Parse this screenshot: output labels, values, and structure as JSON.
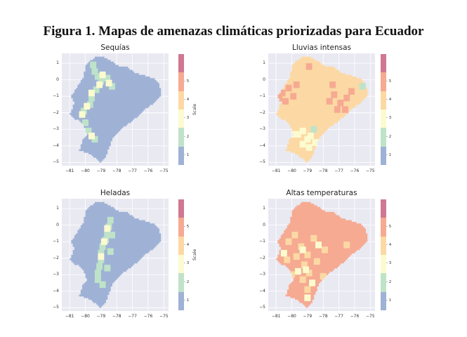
{
  "figure_title": "Figura 1. Mapas de amenazas climáticas priorizadas para Ecuador",
  "colorbar": {
    "label": "Scale",
    "ticks": [
      "1",
      "2",
      "3",
      "4",
      "5"
    ],
    "colors": [
      "#9fb2d6",
      "#bfe3c8",
      "#fbfbcf",
      "#fcd9a4",
      "#f6aa92",
      "#d07891"
    ]
  },
  "chart_data": [
    {
      "type": "heatmap",
      "title": "Sequías",
      "xticks": [
        "−81",
        "−80",
        "−79",
        "−78",
        "−77",
        "−76",
        "−75"
      ],
      "yticks": [
        "1",
        "0",
        "−1",
        "−2",
        "−3",
        "−4",
        "−5"
      ],
      "xlim": [
        -81.5,
        -74.7
      ],
      "ylim": [
        -5.2,
        1.6
      ],
      "base_color": "#9fb2d6",
      "dominant_value": 1,
      "accents": [
        {
          "color": "#bfe3c8",
          "value": 2,
          "pts": [
            [
              -79.4,
              0.5
            ],
            [
              -79.2,
              0.2
            ],
            [
              -79.0,
              -0.1
            ],
            [
              -79.3,
              -0.6
            ],
            [
              -79.6,
              -1.1
            ],
            [
              -79.7,
              -1.5
            ],
            [
              -80.1,
              -1.9
            ],
            [
              -80.0,
              -2.6
            ],
            [
              -79.8,
              -3.1
            ],
            [
              -79.4,
              -3.6
            ],
            [
              -78.6,
              0.1
            ],
            [
              -78.3,
              -0.4
            ],
            [
              -79.5,
              0.9
            ]
          ]
        },
        {
          "color": "#fbfbcf",
          "value": 3,
          "pts": [
            [
              -79.1,
              -0.3
            ],
            [
              -78.9,
              0.3
            ],
            [
              -79.6,
              -0.8
            ],
            [
              -80.2,
              -2.1
            ],
            [
              -79.6,
              -3.4
            ],
            [
              -79.9,
              -1.6
            ],
            [
              -78.5,
              -0.2
            ]
          ]
        }
      ]
    },
    {
      "type": "heatmap",
      "title": "Lluvias intensas",
      "xticks": [
        "−81",
        "−80",
        "−79",
        "−78",
        "−77",
        "−76",
        "−75"
      ],
      "yticks": [
        "1",
        "0",
        "−1",
        "−2",
        "−3",
        "−4",
        "−5"
      ],
      "xlim": [
        -81.5,
        -74.7
      ],
      "ylim": [
        -5.2,
        1.6
      ],
      "base_color": "#fcd9a4",
      "dominant_value": 4,
      "accents": [
        {
          "color": "#f6aa92",
          "value": 5,
          "pts": [
            [
              -80.6,
              -0.8
            ],
            [
              -80.2,
              -0.5
            ],
            [
              -79.9,
              -1.0
            ],
            [
              -80.4,
              -1.3
            ],
            [
              -79.7,
              -0.3
            ],
            [
              -80.8,
              -1.1
            ],
            [
              -77.3,
              -0.9
            ],
            [
              -76.9,
              -1.4
            ],
            [
              -76.5,
              -1.1
            ],
            [
              -77.1,
              -1.8
            ],
            [
              -76.2,
              -0.7
            ],
            [
              -77.6,
              -1.3
            ],
            [
              -76.6,
              -1.8
            ],
            [
              -77.4,
              -0.3
            ],
            [
              -78.9,
              0.8
            ]
          ]
        },
        {
          "color": "#fbfbcf",
          "value": 3,
          "pts": [
            [
              -79.3,
              -3.1
            ],
            [
              -79.0,
              -3.6
            ],
            [
              -79.6,
              -3.3
            ],
            [
              -78.9,
              -4.1
            ],
            [
              -78.5,
              -3.8
            ],
            [
              -79.3,
              -3.9
            ],
            [
              -78.8,
              -3.4
            ],
            [
              -80.0,
              -3.3
            ]
          ]
        },
        {
          "color": "#bfe3c8",
          "value": 2,
          "pts": [
            [
              -78.6,
              -3.0
            ],
            [
              -75.5,
              -0.4
            ]
          ]
        }
      ]
    },
    {
      "type": "heatmap",
      "title": "Heladas",
      "xticks": [
        "−81",
        "−80",
        "−79",
        "−78",
        "−77",
        "−76",
        "−75"
      ],
      "yticks": [
        "1",
        "0",
        "−1",
        "−2",
        "−3",
        "−4",
        "−5"
      ],
      "xlim": [
        -81.5,
        -74.7
      ],
      "ylim": [
        -5.2,
        1.6
      ],
      "base_color": "#9fb2d6",
      "dominant_value": 1,
      "accents": [
        {
          "color": "#bfe3c8",
          "value": 2,
          "pts": [
            [
              -78.4,
              0.3
            ],
            [
              -78.5,
              -0.1
            ],
            [
              -78.6,
              -0.5
            ],
            [
              -78.7,
              -0.9
            ],
            [
              -78.9,
              -1.3
            ],
            [
              -79.0,
              -1.7
            ],
            [
              -79.0,
              -2.1
            ],
            [
              -79.1,
              -2.5
            ],
            [
              -79.2,
              -2.9
            ],
            [
              -79.2,
              -3.3
            ],
            [
              -78.3,
              -0.6
            ],
            [
              -78.4,
              -1.6
            ],
            [
              -78.6,
              -2.6
            ],
            [
              -78.9,
              -3.6
            ]
          ]
        },
        {
          "color": "#fbfbcf",
          "value": 3,
          "pts": [
            [
              -78.6,
              -0.2
            ],
            [
              -78.8,
              -1.0
            ],
            [
              -79.0,
              -1.9
            ]
          ]
        }
      ]
    },
    {
      "type": "heatmap",
      "title": "Altas temperaturas",
      "xticks": [
        "−81",
        "−80",
        "−79",
        "−78",
        "−77",
        "−76",
        "−75"
      ],
      "yticks": [
        "1",
        "0",
        "−1",
        "−2",
        "−3",
        "−4",
        "−5"
      ],
      "xlim": [
        -81.5,
        -74.7
      ],
      "ylim": [
        -5.2,
        1.6
      ],
      "base_color": "#f6aa92",
      "dominant_value": 5,
      "accents": [
        {
          "color": "#fcd9a4",
          "value": 4,
          "pts": [
            [
              -79.4,
              -1.3
            ],
            [
              -79.0,
              -1.8
            ],
            [
              -79.2,
              -2.4
            ],
            [
              -78.9,
              -2.9
            ],
            [
              -79.3,
              -3.3
            ],
            [
              -79.7,
              -1.9
            ],
            [
              -80.3,
              -2.1
            ],
            [
              -80.0,
              -3.0
            ],
            [
              -78.6,
              -0.8
            ],
            [
              -77.9,
              -1.5
            ],
            [
              -78.4,
              -2.2
            ],
            [
              -79.8,
              -0.6
            ],
            [
              -79.0,
              -3.9
            ],
            [
              -80.2,
              -1.0
            ],
            [
              -78.0,
              -3.1
            ],
            [
              -76.5,
              -1.2
            ]
          ]
        },
        {
          "color": "#fbfbcf",
          "value": 3,
          "pts": [
            [
              -79.3,
              -1.5
            ],
            [
              -79.1,
              -2.7
            ],
            [
              -79.6,
              -2.8
            ],
            [
              -78.7,
              -3.5
            ],
            [
              -79.0,
              -4.4
            ],
            [
              -80.5,
              -1.7
            ],
            [
              -78.3,
              -1.2
            ]
          ]
        }
      ]
    }
  ]
}
